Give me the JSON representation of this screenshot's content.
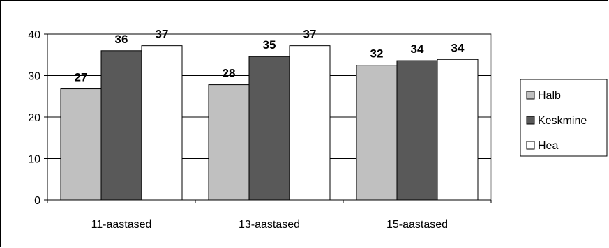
{
  "chart_data": {
    "type": "bar",
    "categories": [
      "11-aastased",
      "13-aastased",
      "15-aastased"
    ],
    "series": [
      {
        "name": "Halb",
        "values": [
          27,
          28,
          32
        ],
        "color": "#c0c0c0"
      },
      {
        "name": "Keskmine",
        "values": [
          36,
          35,
          34
        ],
        "color": "#595959"
      },
      {
        "name": "Hea",
        "values": [
          37,
          37,
          34
        ],
        "color": "#ffffff"
      }
    ],
    "bar_heights": [
      [
        26.8,
        27.8,
        32.5
      ],
      [
        36.0,
        34.6,
        33.6
      ],
      [
        37.2,
        37.2,
        33.9
      ]
    ],
    "y_ticks": [
      0,
      10,
      20,
      30,
      40
    ],
    "ylim": [
      0,
      40
    ],
    "grid": true,
    "legend_position": "right",
    "title": "",
    "xlabel": "",
    "ylabel": ""
  }
}
